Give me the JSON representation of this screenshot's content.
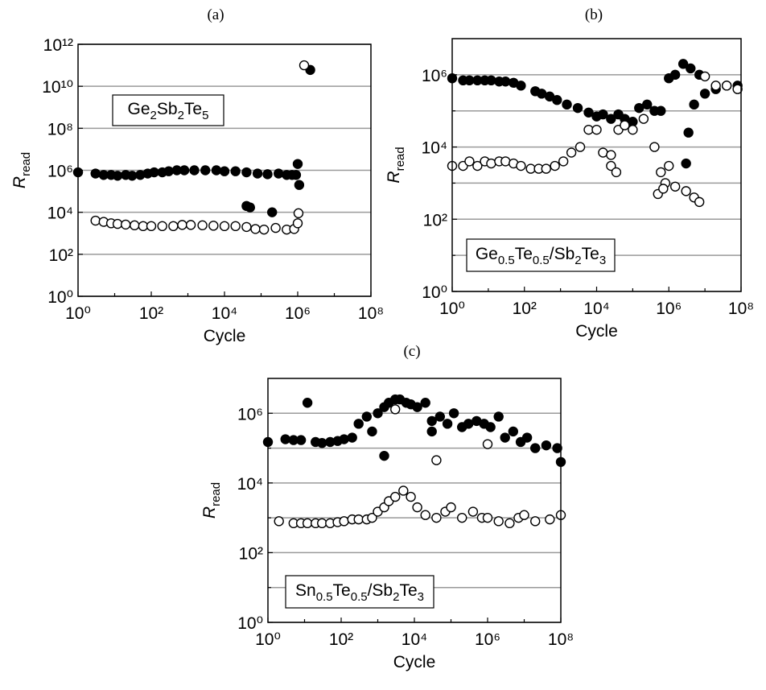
{
  "chart_data": [
    {
      "type": "scatter",
      "title": "(a)",
      "xscale": "log",
      "yscale": "log",
      "grid": true,
      "x_label": "Cycle",
      "y_label_parts": [
        {
          "text": "R",
          "italic": true
        },
        {
          "text": "read",
          "sub": true
        }
      ],
      "annotation_parts": [
        {
          "text": "Ge"
        },
        {
          "text": "2",
          "sub": true
        },
        {
          "text": "Sb"
        },
        {
          "text": "2",
          "sub": true
        },
        {
          "text": "Te"
        },
        {
          "text": "5",
          "sub": true
        }
      ],
      "xlim": [
        1,
        100000000
      ],
      "xticks": [
        {
          "value": 1,
          "label": "10⁰"
        },
        {
          "value": 100,
          "label": "10²"
        },
        {
          "value": 10000,
          "label": "10⁴"
        },
        {
          "value": 1000000,
          "label": "10⁶"
        },
        {
          "value": 100000000,
          "label": "10⁸"
        }
      ],
      "xminor": [
        10,
        1000,
        100000,
        10000000
      ],
      "ylim": [
        1,
        1000000000000
      ],
      "yticks": [
        {
          "value": 1,
          "label": "10⁰"
        },
        {
          "value": 100,
          "label": "10²"
        },
        {
          "value": 10000,
          "label": "10⁴"
        },
        {
          "value": 1000000,
          "label": "10⁶"
        },
        {
          "value": 100000000,
          "label": "10⁸"
        },
        {
          "value": 10000000000,
          "label": "10¹⁰"
        },
        {
          "value": 1000000000000,
          "label": "10¹²"
        }
      ],
      "yminor": [],
      "series": [
        {
          "color": "#000000",
          "fill": "#000000",
          "x": [
            1,
            3,
            5,
            8,
            12,
            20,
            30,
            50,
            80,
            120,
            200,
            300,
            500,
            800,
            1500,
            3000,
            6000,
            10000,
            20000,
            40000,
            80000,
            150000,
            300000,
            500000,
            700000,
            900000,
            1000000,
            1100000,
            40000,
            50000,
            200000,
            2200000
          ],
          "values": [
            800000.0,
            700000.0,
            600000.0,
            600000.0,
            550000.0,
            600000.0,
            550000.0,
            600000.0,
            700000.0,
            800000.0,
            800000.0,
            900000.0,
            1000000.0,
            1000000.0,
            1000000.0,
            1000000.0,
            1000000.0,
            900000.0,
            900000.0,
            800000.0,
            700000.0,
            650000.0,
            700000.0,
            600000.0,
            600000.0,
            600000.0,
            2000000.0,
            200000.0,
            20000.0,
            17000.0,
            10000.0,
            60000000000.0
          ]
        },
        {
          "color": "#000000",
          "fill": "#ffffff",
          "x": [
            3,
            5,
            8,
            12,
            20,
            35,
            60,
            100,
            200,
            400,
            700,
            1200,
            2500,
            5000,
            10000,
            20000,
            40000,
            70000,
            120000,
            250000,
            500000,
            800000,
            1000000,
            1050000,
            1500000
          ],
          "values": [
            4000.0,
            3500.0,
            3000.0,
            2800.0,
            2600.0,
            2400.0,
            2200.0,
            2200.0,
            2200.0,
            2200.0,
            2500.0,
            2500.0,
            2400.0,
            2300.0,
            2200.0,
            2200.0,
            2000.0,
            1600.0,
            1500.0,
            1800.0,
            1500.0,
            1600.0,
            3000.0,
            9000.0,
            100000000000.0
          ]
        }
      ]
    },
    {
      "type": "scatter",
      "title": "(b)",
      "xscale": "log",
      "yscale": "log",
      "grid": true,
      "x_label": "Cycle",
      "y_label_parts": [
        {
          "text": "R",
          "italic": true
        },
        {
          "text": "read",
          "sub": true
        }
      ],
      "annotation_parts": [
        {
          "text": "Ge"
        },
        {
          "text": "0.5",
          "sub": true
        },
        {
          "text": "Te"
        },
        {
          "text": "0.5",
          "sub": true
        },
        {
          "text": "/Sb"
        },
        {
          "text": "2",
          "sub": true
        },
        {
          "text": "Te"
        },
        {
          "text": "3",
          "sub": true
        }
      ],
      "xlim": [
        1,
        100000000
      ],
      "xticks": [
        {
          "value": 1,
          "label": "10⁰"
        },
        {
          "value": 100,
          "label": "10²"
        },
        {
          "value": 10000,
          "label": "10⁴"
        },
        {
          "value": 1000000,
          "label": "10⁶"
        },
        {
          "value": 100000000,
          "label": "10⁸"
        }
      ],
      "xminor": [
        10,
        1000,
        100000,
        10000000
      ],
      "ylim": [
        1,
        10000000
      ],
      "yticks": [
        {
          "value": 1,
          "label": "10⁰"
        },
        {
          "value": 100,
          "label": "10²"
        },
        {
          "value": 10000,
          "label": "10⁴"
        },
        {
          "value": 1000000,
          "label": "10⁶"
        }
      ],
      "yminor": [
        10,
        1000,
        100000
      ],
      "series": [
        {
          "color": "#000000",
          "fill": "#000000",
          "x": [
            1,
            2,
            3,
            5,
            8,
            12,
            20,
            30,
            50,
            80,
            200,
            300,
            500,
            800,
            1500,
            3000,
            6000,
            10000,
            15000,
            25000,
            40000,
            60000,
            100000,
            150000,
            250000,
            400000,
            600000,
            1000000,
            1500000,
            2500000,
            4000000,
            5000000,
            7000000,
            10000000,
            20000000,
            40000000,
            80000000,
            3000000,
            3500000
          ],
          "values": [
            800000.0,
            700000.0,
            700000.0,
            700000.0,
            700000.0,
            700000.0,
            650000.0,
            650000.0,
            600000.0,
            500000.0,
            350000.0,
            300000.0,
            250000.0,
            200000.0,
            150000.0,
            120000.0,
            90000.0,
            70000.0,
            80000.0,
            60000.0,
            80000.0,
            60000.0,
            50000.0,
            120000.0,
            150000.0,
            100000.0,
            100000.0,
            800000.0,
            1000000.0,
            2000000.0,
            1500000.0,
            150000.0,
            1000000.0,
            300000.0,
            400000.0,
            500000.0,
            500000.0,
            3500.0,
            25000.0
          ]
        },
        {
          "color": "#000000",
          "fill": "#ffffff",
          "x": [
            1,
            2,
            3,
            5,
            8,
            12,
            20,
            30,
            50,
            80,
            150,
            250,
            400,
            700,
            1200,
            2000,
            3500,
            6000,
            10000,
            15000,
            25000,
            40000,
            60000,
            100000,
            200000,
            400000,
            600000,
            800000,
            1000000,
            1500000,
            3000000,
            5000000,
            7000000,
            10000000,
            20000000,
            40000000,
            80000000,
            25000,
            35000,
            500000,
            700000
          ],
          "values": [
            3000.0,
            3000.0,
            4000.0,
            3000.0,
            4000.0,
            3500.0,
            4000.0,
            4000.0,
            3500.0,
            3000.0,
            2500.0,
            2500.0,
            2500.0,
            3000.0,
            4000.0,
            7000.0,
            10000.0,
            30000.0,
            30000.0,
            7000.0,
            6000.0,
            30000.0,
            40000.0,
            30000.0,
            60000.0,
            10000.0,
            2000.0,
            1000.0,
            3000.0,
            800.0,
            600.0,
            400.0,
            300.0,
            900000.0,
            500000.0,
            500000.0,
            400000.0,
            3000.0,
            2000.0,
            500.0,
            700.0
          ]
        }
      ]
    },
    {
      "type": "scatter",
      "title": "(c)",
      "xscale": "log",
      "yscale": "log",
      "grid": true,
      "x_label": "Cycle",
      "y_label_parts": [
        {
          "text": "R",
          "italic": true
        },
        {
          "text": "read",
          "sub": true
        }
      ],
      "annotation_parts": [
        {
          "text": "Sn"
        },
        {
          "text": "0.5",
          "sub": true
        },
        {
          "text": "Te"
        },
        {
          "text": "0.5",
          "sub": true
        },
        {
          "text": "/Sb"
        },
        {
          "text": "2",
          "sub": true
        },
        {
          "text": "Te"
        },
        {
          "text": "3",
          "sub": true
        }
      ],
      "xlim": [
        1,
        100000000
      ],
      "xticks": [
        {
          "value": 1,
          "label": "10⁰"
        },
        {
          "value": 100,
          "label": "10²"
        },
        {
          "value": 10000,
          "label": "10⁴"
        },
        {
          "value": 1000000,
          "label": "10⁶"
        },
        {
          "value": 100000000,
          "label": "10⁸"
        }
      ],
      "xminor": [
        10,
        1000,
        100000,
        10000000
      ],
      "ylim": [
        1,
        10000000
      ],
      "yticks": [
        {
          "value": 1,
          "label": "10⁰"
        },
        {
          "value": 100,
          "label": "10²"
        },
        {
          "value": 10000,
          "label": "10⁴"
        },
        {
          "value": 1000000,
          "label": "10⁶"
        }
      ],
      "yminor": [
        10,
        1000,
        100000
      ],
      "series": [
        {
          "color": "#000000",
          "fill": "#000000",
          "x": [
            1,
            3,
            5,
            8,
            12,
            20,
            30,
            50,
            80,
            120,
            200,
            300,
            500,
            700,
            1000,
            1500,
            2000,
            3000,
            4000,
            6000,
            8000,
            12000,
            20000,
            30000,
            50000,
            80000,
            120000,
            200000,
            300000,
            500000,
            800000,
            1200000,
            2000000,
            3000000,
            5000000,
            8000000,
            12000000,
            20000000,
            40000000,
            80000000,
            100000000,
            1500,
            30000
          ],
          "values": [
            150000.0,
            180000.0,
            170000.0,
            170000.0,
            2000000.0,
            150000.0,
            140000.0,
            150000.0,
            160000.0,
            180000.0,
            200000.0,
            500000.0,
            800000.0,
            300000.0,
            1000000.0,
            1500000.0,
            2000000.0,
            2500000.0,
            2500000.0,
            2000000.0,
            1800000.0,
            1500000.0,
            2000000.0,
            300000.0,
            800000.0,
            500000.0,
            1000000.0,
            400000.0,
            500000.0,
            600000.0,
            500000.0,
            400000.0,
            800000.0,
            200000.0,
            300000.0,
            150000.0,
            200000.0,
            100000.0,
            120000.0,
            100000.0,
            40000.0,
            60000.0,
            600000.0
          ]
        },
        {
          "color": "#000000",
          "fill": "#ffffff",
          "x": [
            2,
            5,
            8,
            12,
            20,
            30,
            50,
            80,
            120,
            200,
            300,
            500,
            700,
            1000,
            1500,
            2000,
            3000,
            5000,
            8000,
            12000,
            20000,
            40000,
            70000,
            100000,
            200000,
            400000,
            700000,
            1000000,
            2000000,
            4000000,
            7000000,
            10000000,
            20000000,
            50000000,
            100000000,
            3000,
            40000,
            1000000
          ],
          "values": [
            800,
            700,
            700,
            700,
            700,
            700,
            700,
            750,
            800,
            900,
            900,
            900,
            1000.0,
            1500.0,
            2000.0,
            3000.0,
            4000.0,
            6000.0,
            4000.0,
            2000.0,
            1200.0,
            1000.0,
            1500.0,
            2000.0,
            1000.0,
            1500.0,
            1000.0,
            1000.0,
            800,
            700,
            1000.0,
            1200.0,
            800,
            900,
            1200.0,
            1300000.0,
            45000.0,
            130000.0
          ]
        }
      ]
    }
  ]
}
